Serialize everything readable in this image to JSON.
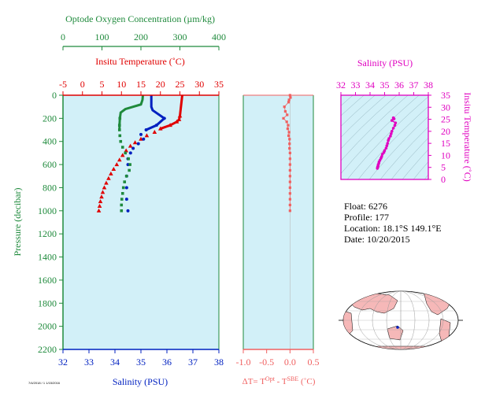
{
  "colors": {
    "oxygen": "#1f8a3c",
    "temperature": "#e00000",
    "salinity": "#0020c0",
    "delta": "#f06060",
    "ts": "#e000c0",
    "plot_bg": "#d2f0f8"
  },
  "info": {
    "float": "Float:  6276",
    "profile": "Profile:  177",
    "location": "Location:  18.1°S  149.1°E",
    "date": "Date:  10/20/2015"
  },
  "footer_small": "7/4/2018 / 1 1/15/2016",
  "chart_data": [
    {
      "type": "line",
      "panel": "main",
      "ylabel": "Pressure (decibar)",
      "ylim": [
        2200,
        0
      ],
      "yticks": [
        0,
        200,
        400,
        600,
        800,
        1000,
        1200,
        1400,
        1600,
        1800,
        2000,
        2200
      ],
      "axes": {
        "oxygen": {
          "label": "Optode Oxygen Concentration (µm/kg)",
          "lim": [
            0,
            400
          ],
          "ticks": [
            0,
            100,
            200,
            300,
            400
          ]
        },
        "temperature": {
          "label": "Insitu Temperature (˚C)",
          "lim": [
            -5,
            35
          ],
          "ticks": [
            -5,
            0,
            5,
            10,
            15,
            20,
            25,
            30,
            35
          ]
        },
        "salinity": {
          "label": "Salinity (PSU)",
          "lim": [
            32,
            38
          ],
          "ticks": [
            32,
            33,
            34,
            35,
            36,
            37,
            38
          ]
        }
      },
      "series": [
        {
          "key": "temperature",
          "points": [
            [
              25.6,
              0
            ],
            [
              25.5,
              30
            ],
            [
              25.4,
              60
            ],
            [
              25.3,
              90
            ],
            [
              25.2,
              120
            ],
            [
              25.1,
              150
            ],
            [
              25,
              180
            ],
            [
              24.8,
              210
            ],
            [
              24.2,
              230
            ],
            [
              22.5,
              260
            ],
            [
              20,
              290
            ],
            [
              18.5,
              320
            ],
            [
              16.5,
              350
            ],
            [
              15,
              380
            ],
            [
              13.5,
              410
            ],
            [
              12.3,
              440
            ],
            [
              11.2,
              480
            ],
            [
              10.3,
              520
            ],
            [
              9.5,
              560
            ],
            [
              8.8,
              600
            ],
            [
              8,
              640
            ],
            [
              7.3,
              680
            ],
            [
              6.7,
              720
            ],
            [
              6.1,
              760
            ],
            [
              5.6,
              800
            ],
            [
              5.2,
              840
            ],
            [
              4.9,
              880
            ],
            [
              4.6,
              920
            ],
            [
              4.4,
              960
            ],
            [
              4.2,
              1000
            ]
          ]
        },
        {
          "key": "salinity",
          "points": [
            [
              35.4,
              0
            ],
            [
              35.4,
              50
            ],
            [
              35.4,
              100
            ],
            [
              35.45,
              130
            ],
            [
              35.9,
              200
            ],
            [
              35.6,
              260
            ],
            [
              35.2,
              300
            ],
            [
              35,
              340
            ],
            [
              35.1,
              380
            ],
            [
              34.9,
              420
            ],
            [
              34.7,
              460
            ],
            [
              34.6,
              500
            ],
            [
              34.5,
              550
            ],
            [
              34.5,
              600
            ],
            [
              34.45,
              700
            ],
            [
              34.45,
              800
            ],
            [
              34.45,
              900
            ],
            [
              34.5,
              1000
            ]
          ]
        },
        {
          "key": "oxygen",
          "points": [
            [
              205,
              0
            ],
            [
              204,
              40
            ],
            [
              200,
              80
            ],
            [
              160,
              120
            ],
            [
              148,
              150
            ],
            [
              146,
              200
            ],
            [
              145,
              260
            ],
            [
              145,
              300
            ],
            [
              146,
              350
            ],
            [
              148,
              400
            ],
            [
              153,
              450
            ],
            [
              160,
              500
            ],
            [
              168,
              550
            ],
            [
              172,
              600
            ],
            [
              170,
              650
            ],
            [
              163,
              700
            ],
            [
              158,
              750
            ],
            [
              155,
              800
            ],
            [
              153,
              850
            ],
            [
              151,
              900
            ],
            [
              150,
              950
            ],
            [
              150,
              1000
            ]
          ]
        }
      ]
    },
    {
      "type": "scatter",
      "panel": "delta",
      "xlabel": "ΔT= T^Opt - T^SBE (˚C)",
      "xlim": [
        -1.0,
        0.5
      ],
      "xticks": [
        "-1.0",
        "-0.5",
        "0.0",
        "0.5"
      ],
      "ylim": [
        2200,
        0
      ],
      "points": [
        [
          0,
          0
        ],
        [
          0.01,
          20
        ],
        [
          -0.02,
          40
        ],
        [
          -0.03,
          60
        ],
        [
          -0.12,
          100
        ],
        [
          -0.1,
          140
        ],
        [
          -0.06,
          170
        ],
        [
          -0.14,
          200
        ],
        [
          -0.07,
          230
        ],
        [
          -0.04,
          260
        ],
        [
          -0.05,
          290
        ],
        [
          -0.02,
          320
        ],
        [
          -0.03,
          350
        ],
        [
          -0.01,
          380
        ],
        [
          -0.01,
          420
        ],
        [
          -0.01,
          460
        ],
        [
          0,
          500
        ],
        [
          0,
          550
        ],
        [
          0,
          600
        ],
        [
          0,
          650
        ],
        [
          0,
          700
        ],
        [
          0,
          750
        ],
        [
          0,
          800
        ],
        [
          0,
          850
        ],
        [
          0,
          900
        ],
        [
          0,
          950
        ],
        [
          0,
          1000
        ]
      ]
    },
    {
      "type": "scatter",
      "panel": "ts",
      "title": "Salinity (PSU)",
      "xlim": [
        32,
        38
      ],
      "xticks": [
        32,
        33,
        34,
        35,
        36,
        37,
        38
      ],
      "ylabel": "Insitu Temperature (˚C)",
      "ylim": [
        0,
        35
      ],
      "yticks": [
        0,
        5,
        10,
        15,
        20,
        25,
        30,
        35
      ],
      "points": [
        [
          35.6,
          25.6
        ],
        [
          35.65,
          25.2
        ],
        [
          35.5,
          24.5
        ],
        [
          35.75,
          23.5
        ],
        [
          35.7,
          22.5
        ],
        [
          35.6,
          21.3
        ],
        [
          35.5,
          20
        ],
        [
          35.45,
          19
        ],
        [
          35.4,
          18
        ],
        [
          35.3,
          17
        ],
        [
          35.25,
          16.2
        ],
        [
          35.2,
          15
        ],
        [
          35.15,
          14
        ],
        [
          35.1,
          13
        ],
        [
          35,
          12
        ],
        [
          34.95,
          11.2
        ],
        [
          34.85,
          10.5
        ],
        [
          34.8,
          9.5
        ],
        [
          34.75,
          8.8
        ],
        [
          34.68,
          8
        ],
        [
          34.62,
          7.3
        ],
        [
          34.6,
          6.7
        ],
        [
          34.56,
          6.1
        ],
        [
          34.55,
          5.6
        ],
        [
          34.52,
          5.2
        ],
        [
          34.52,
          4.9
        ],
        [
          34.5,
          4.6
        ]
      ]
    }
  ]
}
